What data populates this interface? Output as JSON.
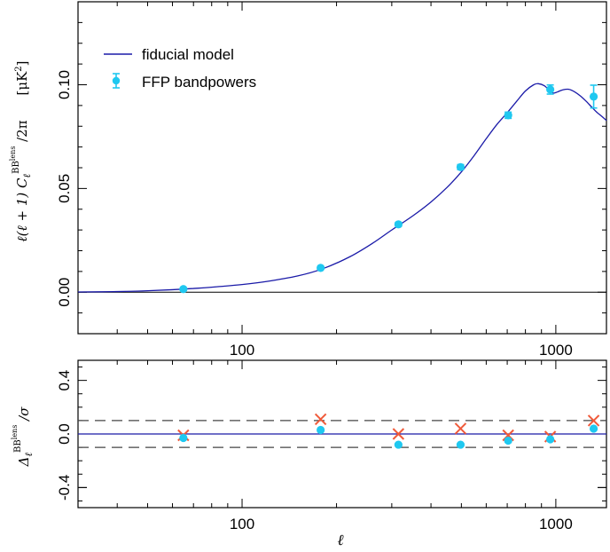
{
  "chart_data": [
    {
      "type": "line",
      "panel": "top",
      "ylabel": "ℓ(ℓ+1) C_ℓ^{BB^lens} /2π",
      "yunit": "[μK²]",
      "xscale": "log",
      "xlim": [
        30,
        1450
      ],
      "ylim": [
        -0.02,
        0.14
      ],
      "xticks": [
        100,
        1000
      ],
      "xtick_labels": [
        "100",
        "1000"
      ],
      "yticks": [
        0.0,
        0.05,
        0.1
      ],
      "ytick_labels": [
        "0.00",
        "0.05",
        "0.10"
      ],
      "zero_line": 0.0,
      "legend_position": "top-left",
      "legend": {
        "model": "fiducial model",
        "points": "FFP bandpowers"
      },
      "colors": {
        "model": "#1a1aa8",
        "points": "#1fc8f0",
        "axes": "#000000"
      },
      "series": [
        {
          "name": "fiducial model",
          "kind": "line",
          "x": [
            30,
            40,
            50,
            60,
            70,
            80,
            100,
            120,
            150,
            180,
            220,
            260,
            300,
            350,
            400,
            450,
            500,
            550,
            600,
            650,
            700,
            750,
            800,
            850,
            880,
            920,
            950,
            980,
            1010,
            1050,
            1100,
            1150,
            1200,
            1250,
            1300,
            1350,
            1400,
            1450
          ],
          "y": [
            0.0001,
            0.0003,
            0.0007,
            0.0012,
            0.0018,
            0.0024,
            0.0037,
            0.0052,
            0.0078,
            0.0112,
            0.017,
            0.0235,
            0.03,
            0.0368,
            0.0435,
            0.0505,
            0.058,
            0.066,
            0.074,
            0.081,
            0.0865,
            0.092,
            0.097,
            0.1,
            0.1005,
            0.0995,
            0.0975,
            0.096,
            0.0965,
            0.0975,
            0.0978,
            0.0965,
            0.0945,
            0.092,
            0.0893,
            0.0868,
            0.0848,
            0.0828
          ]
        },
        {
          "name": "FFP bandpowers",
          "kind": "points",
          "x": [
            65,
            178,
            315,
            497,
            705,
            960,
            1320
          ],
          "y": [
            0.0015,
            0.0117,
            0.0327,
            0.0603,
            0.0853,
            0.0977,
            0.0943
          ],
          "yerr": [
            0.0006,
            0.0007,
            0.0009,
            0.0012,
            0.0015,
            0.0022,
            0.0055
          ]
        }
      ]
    },
    {
      "type": "scatter",
      "panel": "bottom",
      "xlabel": "ℓ",
      "ylabel": "Δ_ℓ^{BB^lens} /σ",
      "xscale": "log",
      "xlim": [
        30,
        1450
      ],
      "ylim": [
        -0.55,
        0.55
      ],
      "xticks": [
        100,
        1000
      ],
      "xtick_labels": [
        "100",
        "1000"
      ],
      "yticks": [
        -0.4,
        0.0,
        0.4
      ],
      "ytick_labels": [
        "-0.4",
        "0.0",
        "0.4"
      ],
      "reference_line": 0.0,
      "dashed_lines": [
        0.1,
        -0.1
      ],
      "colors": {
        "line": "#1a1aa8",
        "dots": "#1fc8f0",
        "crosses": "#f05a3a",
        "dashed": "#444444"
      },
      "series": [
        {
          "kind": "dots",
          "x": [
            65,
            178,
            315,
            497,
            705,
            960,
            1320
          ],
          "y": [
            -0.03,
            0.03,
            -0.08,
            -0.08,
            -0.05,
            -0.04,
            0.04
          ]
        },
        {
          "kind": "crosses",
          "x": [
            65,
            178,
            315,
            497,
            705,
            960,
            1320
          ],
          "y": [
            -0.01,
            0.11,
            0.0,
            0.04,
            -0.01,
            -0.02,
            0.1
          ]
        }
      ]
    }
  ]
}
